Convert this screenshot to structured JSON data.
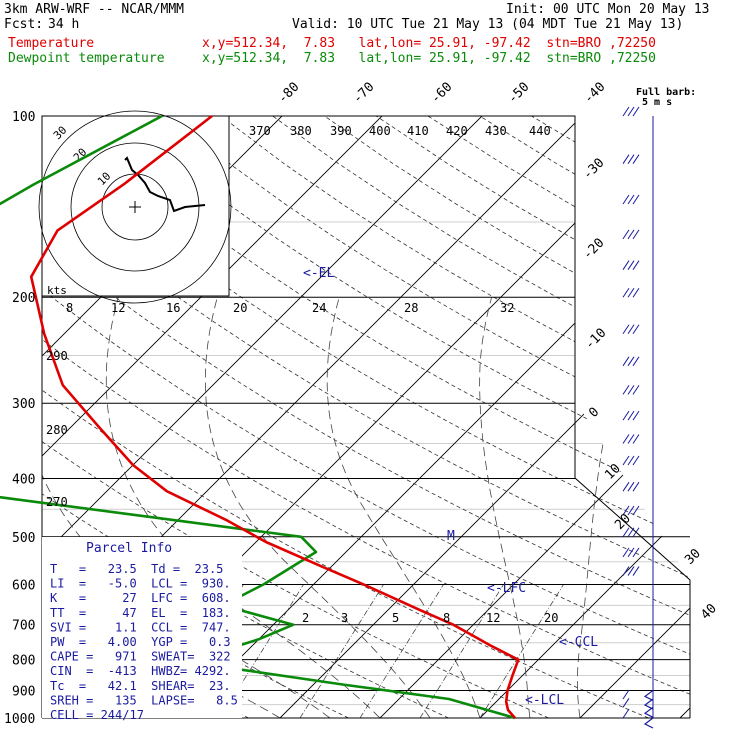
{
  "header": {
    "model": "3km ARW-WRF -- NCAR/MMM",
    "init": "Init: 00 UTC Mon 20 May 13",
    "fcst_label": "Fcst:",
    "fcst_value": "34 h",
    "valid": "Valid: 10 UTC Tue 21 May 13 (04 MDT Tue 21 May 13)",
    "temp_label": "Temperature",
    "temp_info": "x,y=512.34,  7.83   lat,lon= 25.91, -97.42  stn=BRO ,72250",
    "dew_label": "Dewpoint temperature",
    "dew_info": "x,y=512.34,  7.83   lat,lon= 25.91, -97.42  stn=BRO ,72250"
  },
  "colors": {
    "temperature": "#e00000",
    "dewpoint": "#0a8a0a",
    "wind": "#1a1aa0",
    "text_blue": "#1a1aa0"
  },
  "barb_key": [
    "Full barb:",
    "5 m s"
  ],
  "annotations": {
    "el": "<-EL",
    "lfc": "<-LFC",
    "ccl": "<-CCL",
    "lcl": "<-LCL",
    "m": "M"
  },
  "parcel": {
    "title": "Parcel  Info",
    "rows": [
      "T   =   23.5  Td =  23.5",
      "LI  =   -5.0  LCL =  930.",
      "K   =     27  LFC =  608.",
      "TT  =     47  EL  =  183.",
      "SVI =    1.1  CCL =  747.",
      "PW  =   4.00  YGP =   0.3",
      "CAPE =   971  SWEAT=  322",
      "CIN  =  -413  HWBZ= 4292.",
      "Tc  =   42.1  SHEAR=  23.",
      "SREH =   135  LAPSE=   8.5",
      "CELL = 244/17"
    ]
  },
  "chart_data": {
    "type": "skew-t",
    "pressure_ticks": [
      "100",
      "200",
      "300",
      "400",
      "500",
      "600",
      "700",
      "800",
      "900",
      "1000"
    ],
    "theta_labels": [
      "370",
      "380",
      "390",
      "400",
      "410",
      "420",
      "430",
      "440"
    ],
    "hodo_speed_labels": [
      "8",
      "12",
      "16",
      "20",
      "24",
      "28",
      "32"
    ],
    "hodo_kts": "kts",
    "hodo_ring_labels": [
      "30",
      "20",
      "10"
    ],
    "mixing_labels": [
      "2",
      "3",
      "5",
      "8",
      "12",
      "20"
    ],
    "isotherm_labels_top": [
      "-80",
      "-70",
      "-60",
      "-50",
      "-40"
    ],
    "isotherm_labels_right": [
      "-30",
      "-20",
      "-10",
      "0",
      "10",
      "20",
      "30",
      "40"
    ],
    "dry_adiabat_labels": [
      "290",
      "280",
      "270"
    ],
    "temperature": {
      "name": "Temperature",
      "points": [
        [
          100,
          -67
        ],
        [
          130,
          -69
        ],
        [
          155,
          -71
        ],
        [
          185,
          -69
        ],
        [
          230,
          -62
        ],
        [
          280,
          -55
        ],
        [
          330,
          -47
        ],
        [
          380,
          -40
        ],
        [
          420,
          -34
        ],
        [
          470,
          -25
        ],
        [
          510,
          -19
        ],
        [
          560,
          -11
        ],
        [
          600,
          -5
        ],
        [
          660,
          3
        ],
        [
          700,
          8
        ],
        [
          760,
          14
        ],
        [
          800,
          18
        ],
        [
          850,
          19
        ],
        [
          900,
          20
        ],
        [
          940,
          21
        ],
        [
          970,
          22
        ],
        [
          1000,
          23.5
        ]
      ]
    },
    "dewpoint": {
      "name": "Dewpoint temperature",
      "points": [
        [
          100,
          -72
        ],
        [
          130,
          -78
        ],
        [
          160,
          -82
        ],
        [
          180,
          -83
        ],
        [
          230,
          -80
        ],
        [
          280,
          -72
        ],
        [
          310,
          -65
        ],
        [
          350,
          -62
        ],
        [
          395,
          -68
        ],
        [
          430,
          -50
        ],
        [
          470,
          -30
        ],
        [
          500,
          -16
        ],
        [
          530,
          -13
        ],
        [
          600,
          -15
        ],
        [
          650,
          -17
        ],
        [
          700,
          -8
        ],
        [
          740,
          -10
        ],
        [
          780,
          -13
        ],
        [
          830,
          -9
        ],
        [
          880,
          3
        ],
        [
          930,
          15
        ],
        [
          1000,
          23.5
        ]
      ]
    },
    "wind_barb_pressures": [
      100,
      120,
      140,
      160,
      180,
      200,
      230,
      260,
      290,
      320,
      350,
      380,
      420,
      460,
      500,
      540,
      580,
      620,
      660,
      700,
      740,
      780,
      820,
      860,
      900,
      930,
      960,
      1000
    ]
  }
}
